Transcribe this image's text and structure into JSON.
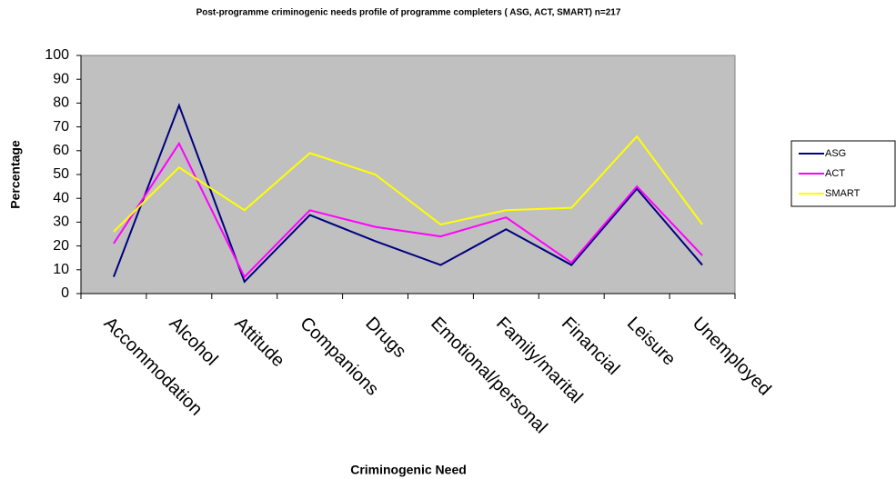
{
  "chart_data": {
    "type": "line",
    "title": "Post-programme criminogenic needs profile of programme completers ( ASG, ACT, SMART) n=217",
    "x_label": "Criminogenic Need",
    "y_label": "Percentage",
    "categories": [
      "Accommodation",
      "Alcohol",
      "Attitude",
      "Companions",
      "Drugs",
      "Emotional/personal",
      "Family/marital",
      "Financial",
      "Leisure",
      "Unemployed"
    ],
    "series": [
      {
        "name": "ASG",
        "color": "#000080",
        "values": [
          7,
          79,
          5,
          33,
          22,
          12,
          27,
          12,
          44,
          12
        ]
      },
      {
        "name": "ACT",
        "color": "#ff00ff",
        "values": [
          21,
          63,
          7,
          35,
          28,
          24,
          32,
          13,
          45,
          16
        ]
      },
      {
        "name": "SMART",
        "color": "#ffff00",
        "values": [
          26,
          53,
          35,
          59,
          50,
          29,
          35,
          36,
          66,
          29
        ]
      }
    ],
    "ylim": [
      0,
      100
    ],
    "yticks": [
      0,
      10,
      20,
      30,
      40,
      50,
      60,
      70,
      80,
      90,
      100
    ],
    "grid": false,
    "legend": "right"
  }
}
